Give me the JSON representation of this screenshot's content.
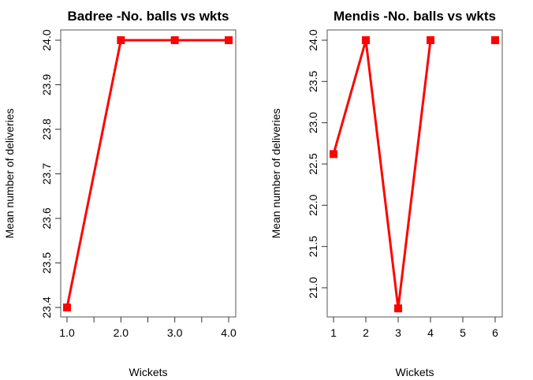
{
  "chart_data": [
    {
      "type": "line",
      "title": "Badree -No. balls vs wkts",
      "xlabel": "Wickets",
      "ylabel": "Mean number of deliveries",
      "x": [
        1,
        2,
        3,
        4
      ],
      "values": [
        23.4,
        24.0,
        24.0,
        24.0
      ],
      "xticks": [
        "1.0",
        "2.0",
        "3.0",
        "4.0"
      ],
      "xticks_minor": [
        1.5,
        2.5,
        3.5
      ],
      "yticks": [
        "23.4",
        "23.5",
        "23.6",
        "23.7",
        "23.8",
        "23.9",
        "24.0"
      ],
      "ylim": [
        23.4,
        24.0
      ],
      "xlim": [
        1,
        4
      ],
      "grid": false,
      "color": "#ff0000"
    },
    {
      "type": "line",
      "title": "Mendis -No. balls vs wkts",
      "xlabel": "Wickets",
      "ylabel": "Mean number of deliveries",
      "categories": [
        "1",
        "2",
        "3",
        "4",
        "6"
      ],
      "values": [
        22.62,
        24.0,
        20.75,
        24.0,
        24.0
      ],
      "xticks": [
        "1",
        "2",
        "3",
        "4",
        "5",
        "6"
      ],
      "yticks": [
        "21.0",
        "21.5",
        "22.0",
        "22.5",
        "23.0",
        "23.5",
        "24.0"
      ],
      "ylim": [
        20.75,
        24.0
      ],
      "grid": false,
      "color": "#ff0000",
      "note": "points plotted at x positions 1,2,3,4,6 (4 to 6 not connected)"
    }
  ]
}
